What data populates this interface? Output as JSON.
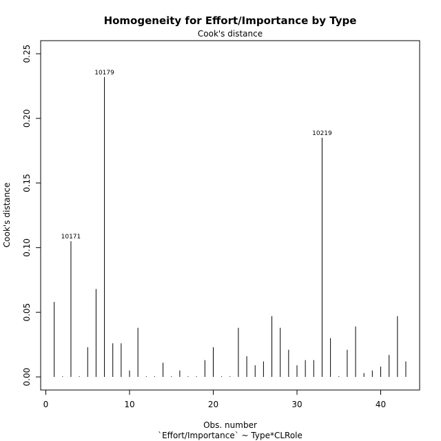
{
  "chart_data": {
    "type": "bar",
    "title": "Homogeneity for Effort/Importance by Type",
    "subtitle": "Cook's distance",
    "xlabel": "Obs. number",
    "xlabel2": "`Effort/Importance` ~ Type*CLRole",
    "ylabel": "Cook's distance",
    "xlim": [
      0,
      44
    ],
    "ylim": [
      0,
      0.25
    ],
    "x_ticks": [
      "0",
      "10",
      "20",
      "30",
      "40"
    ],
    "y_ticks": [
      "0.00",
      "0.05",
      "0.10",
      "0.15",
      "0.20",
      "0.25"
    ],
    "grid": false,
    "legend": "none",
    "x": [
      1,
      2,
      3,
      4,
      5,
      6,
      7,
      8,
      9,
      10,
      11,
      12,
      13,
      14,
      15,
      16,
      17,
      18,
      19,
      20,
      21,
      22,
      23,
      24,
      25,
      26,
      27,
      28,
      29,
      30,
      31,
      32,
      33,
      34,
      35,
      36,
      37,
      38,
      39,
      40,
      41,
      42,
      43
    ],
    "values": [
      0.058,
      0.0005,
      0.105,
      0.0005,
      0.023,
      0.068,
      0.232,
      0.026,
      0.026,
      0.005,
      0.038,
      0.0005,
      0.0005,
      0.011,
      0.0005,
      0.005,
      0.0005,
      0.0005,
      0.013,
      0.023,
      0.0005,
      0.0005,
      0.038,
      0.016,
      0.009,
      0.012,
      0.047,
      0.038,
      0.021,
      0.009,
      0.013,
      0.013,
      0.185,
      0.03,
      0.0005,
      0.021,
      0.039,
      0.003,
      0.005,
      0.008,
      0.017,
      0.047,
      0.012
    ],
    "labels": [
      {
        "x": 3,
        "text": "10171"
      },
      {
        "x": 7,
        "text": "10179"
      },
      {
        "x": 33,
        "text": "10219"
      }
    ]
  }
}
